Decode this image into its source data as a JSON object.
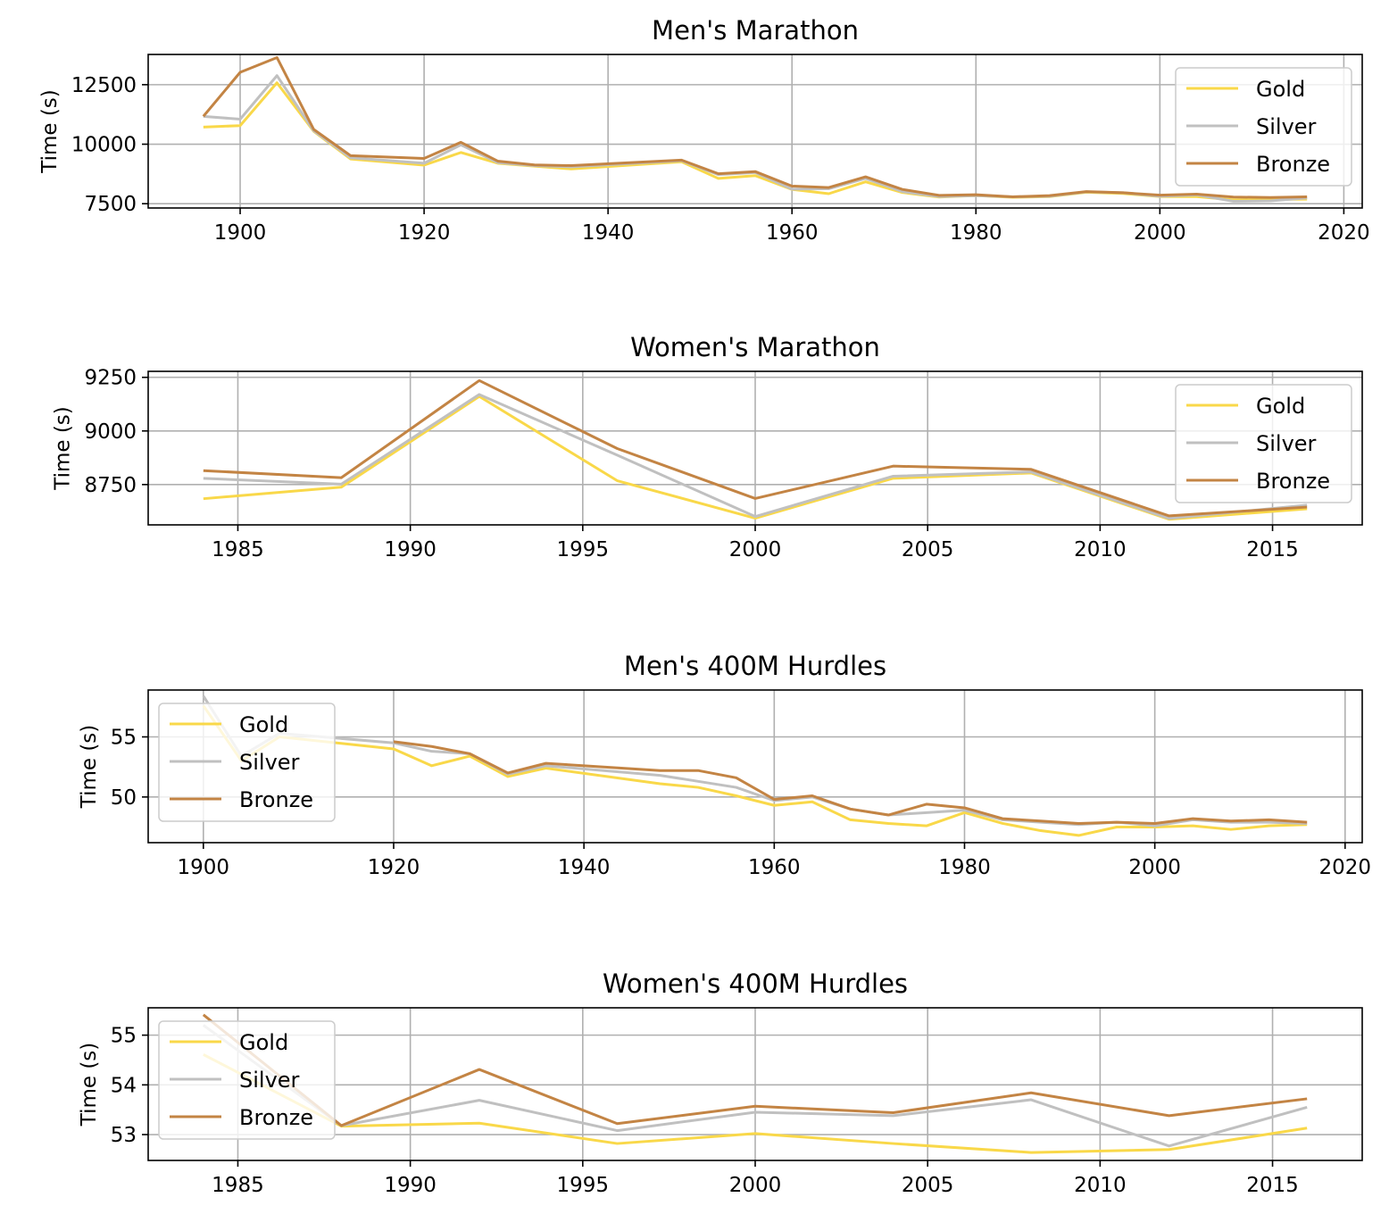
{
  "colors": {
    "Gold": "#f9d849",
    "Silver": "#c0c0c0",
    "Bronze": "#c38444"
  },
  "chart_data": [
    {
      "type": "line",
      "title": "Men's Marathon",
      "ylabel": "Time (s)",
      "xlabel": "",
      "xlim": [
        1890,
        2022
      ],
      "ylim": [
        7320,
        13770
      ],
      "xticks": [
        1900,
        1920,
        1940,
        1960,
        1980,
        2000,
        2020
      ],
      "yticks": [
        7500,
        10000,
        12500
      ],
      "grid": true,
      "legend_position": "upper right",
      "series": [
        {
          "name": "Gold",
          "x": [
            1896,
            1900,
            1904,
            1908,
            1912,
            1920,
            1924,
            1928,
            1932,
            1936,
            1948,
            1952,
            1956,
            1960,
            1964,
            1968,
            1972,
            1976,
            1980,
            1984,
            1988,
            1992,
            1996,
            2000,
            2004,
            2008,
            2012,
            2016
          ],
          "y": [
            10720,
            10780,
            12580,
            10540,
            9380,
            9120,
            9650,
            9200,
            9080,
            8960,
            9260,
            8560,
            8680,
            8100,
            7920,
            8420,
            7970,
            7780,
            7840,
            7770,
            7800,
            7980,
            7930,
            7800,
            7800,
            7660,
            7680,
            7690
          ]
        },
        {
          "name": "Silver",
          "x": [
            1896,
            1900,
            1904,
            1908,
            1912,
            1920,
            1924,
            1928,
            1932,
            1936,
            1948,
            1952,
            1956,
            1960,
            1964,
            1968,
            1972,
            1976,
            1980,
            1984,
            1988,
            1992,
            1996,
            2000,
            2004,
            2008,
            2012,
            2016
          ],
          "y": [
            11170,
            11050,
            12880,
            10560,
            9430,
            9200,
            9970,
            9230,
            9100,
            9050,
            9310,
            8720,
            8810,
            8110,
            8130,
            8560,
            8010,
            7800,
            7840,
            7790,
            7810,
            8000,
            7960,
            7810,
            7870,
            7600,
            7620,
            7740
          ]
        },
        {
          "name": "Bronze",
          "x": [
            1896,
            1900,
            1904,
            1908,
            1912,
            1920,
            1924,
            1928,
            1932,
            1936,
            1948,
            1952,
            1956,
            1960,
            1964,
            1968,
            1972,
            1976,
            1980,
            1984,
            1988,
            1992,
            1996,
            2000,
            2004,
            2008,
            2012,
            2016
          ],
          "y": [
            11170,
            13020,
            13640,
            10620,
            9520,
            9400,
            10080,
            9290,
            9130,
            9100,
            9330,
            8760,
            8850,
            8240,
            8180,
            8630,
            8100,
            7850,
            7880,
            7790,
            7840,
            8010,
            7960,
            7860,
            7900,
            7780,
            7760,
            7790
          ]
        }
      ]
    },
    {
      "type": "line",
      "title": "Women's Marathon",
      "ylabel": "Time (s)",
      "xlabel": "",
      "xlim": [
        1982.4,
        2017.6
      ],
      "ylim": [
        8562,
        9278
      ],
      "xticks": [
        1985,
        1990,
        1995,
        2000,
        2005,
        2010,
        2015
      ],
      "yticks": [
        8750,
        9000,
        9250
      ],
      "grid": true,
      "legend_position": "upper right",
      "series": [
        {
          "name": "Gold",
          "x": [
            1984,
            1988,
            1992,
            1996,
            2000,
            2004,
            2008,
            2012,
            2016
          ],
          "y": [
            8684,
            8738,
            9161,
            8768,
            8593,
            8779,
            8804,
            8588,
            8637
          ]
        },
        {
          "name": "Silver",
          "x": [
            1984,
            1988,
            1992,
            1996,
            2000,
            2004,
            2008,
            2012,
            2016
          ],
          "y": [
            8779,
            8752,
            9170,
            8887,
            8601,
            8789,
            8809,
            8592,
            8654
          ]
        },
        {
          "name": "Bronze",
          "x": [
            1984,
            1988,
            1992,
            1996,
            2000,
            2004,
            2008,
            2012,
            2016
          ],
          "y": [
            8815,
            8782,
            9235,
            8918,
            8685,
            8836,
            8821,
            8604,
            8645
          ]
        }
      ]
    },
    {
      "type": "line",
      "title": "Men's 400M Hurdles",
      "ylabel": "Time (s)",
      "xlabel": "",
      "xlim": [
        1894.2,
        2021.8
      ],
      "ylim": [
        46.2,
        58.9
      ],
      "xticks": [
        1900,
        1920,
        1940,
        1960,
        1980,
        2000,
        2020
      ],
      "yticks": [
        50,
        55
      ],
      "grid": true,
      "legend_position": "upper left",
      "series": [
        {
          "name": "Gold",
          "x": [
            1900,
            1904,
            1908,
            1920,
            1924,
            1928,
            1932,
            1936,
            1948,
            1952,
            1956,
            1960,
            1964,
            1968,
            1972,
            1976,
            1980,
            1984,
            1988,
            1992,
            1996,
            2000,
            2004,
            2008,
            2012,
            2016
          ],
          "y": [
            57.6,
            53.0,
            55.0,
            54.0,
            52.6,
            53.4,
            51.7,
            52.4,
            51.1,
            50.8,
            50.1,
            49.3,
            49.6,
            48.1,
            47.8,
            47.6,
            48.7,
            47.8,
            47.2,
            46.8,
            47.5,
            47.5,
            47.6,
            47.3,
            47.6,
            47.7
          ]
        },
        {
          "name": "Silver",
          "x": [
            1900,
            1904,
            1908,
            1920,
            1924,
            1928,
            1932,
            1936,
            1948,
            1952,
            1956,
            1960,
            1964,
            1968,
            1972,
            1976,
            1980,
            1984,
            1988,
            1992,
            1996,
            2000,
            2004,
            2008,
            2012,
            2016
          ],
          "y": [
            58.4,
            53.4,
            55.3,
            54.5,
            53.8,
            53.6,
            51.9,
            52.6,
            51.8,
            51.3,
            50.8,
            49.7,
            50.0,
            49.0,
            48.5,
            48.7,
            48.9,
            48.1,
            47.9,
            47.7,
            47.9,
            47.6,
            48.1,
            47.9,
            47.9,
            47.8
          ]
        },
        {
          "name": "Bronze",
          "x": [
            1900,
            1904,
            1908,
            1920,
            1924,
            1928,
            1932,
            1936,
            1948,
            1952,
            1956,
            1960,
            1964,
            1968,
            1972,
            1976,
            1980,
            1984,
            1988,
            1992,
            1996,
            2000,
            2004,
            2008,
            2012,
            2016
          ],
          "y": [
            null,
            null,
            null,
            54.6,
            54.2,
            53.6,
            52.0,
            52.8,
            52.2,
            52.2,
            51.6,
            49.8,
            50.1,
            49.0,
            48.5,
            49.4,
            49.1,
            48.2,
            48.0,
            47.8,
            47.9,
            47.8,
            48.2,
            48.0,
            48.1,
            47.9
          ]
        }
      ]
    },
    {
      "type": "line",
      "title": "Women's 400M Hurdles",
      "ylabel": "Time (s)",
      "xlabel": "",
      "xlim": [
        1982.4,
        2017.6
      ],
      "ylim": [
        52.48,
        55.55
      ],
      "xticks": [
        1985,
        1990,
        1995,
        2000,
        2005,
        2010,
        2015
      ],
      "yticks": [
        53,
        54,
        55
      ],
      "grid": true,
      "legend_position": "upper left",
      "series": [
        {
          "name": "Gold",
          "x": [
            1984,
            1988,
            1992,
            1996,
            2000,
            2004,
            2008,
            2012,
            2016
          ],
          "y": [
            54.61,
            53.17,
            53.23,
            52.82,
            53.02,
            52.82,
            52.64,
            52.7,
            53.13
          ]
        },
        {
          "name": "Silver",
          "x": [
            1984,
            1988,
            1992,
            1996,
            2000,
            2004,
            2008,
            2012,
            2016
          ],
          "y": [
            55.2,
            53.18,
            53.69,
            53.08,
            53.45,
            53.38,
            53.7,
            52.77,
            53.55
          ]
        },
        {
          "name": "Bronze",
          "x": [
            1984,
            1988,
            1992,
            1996,
            2000,
            2004,
            2008,
            2012,
            2016
          ],
          "y": [
            55.41,
            53.18,
            54.31,
            53.22,
            53.57,
            53.44,
            53.84,
            53.38,
            53.72
          ]
        }
      ]
    }
  ]
}
